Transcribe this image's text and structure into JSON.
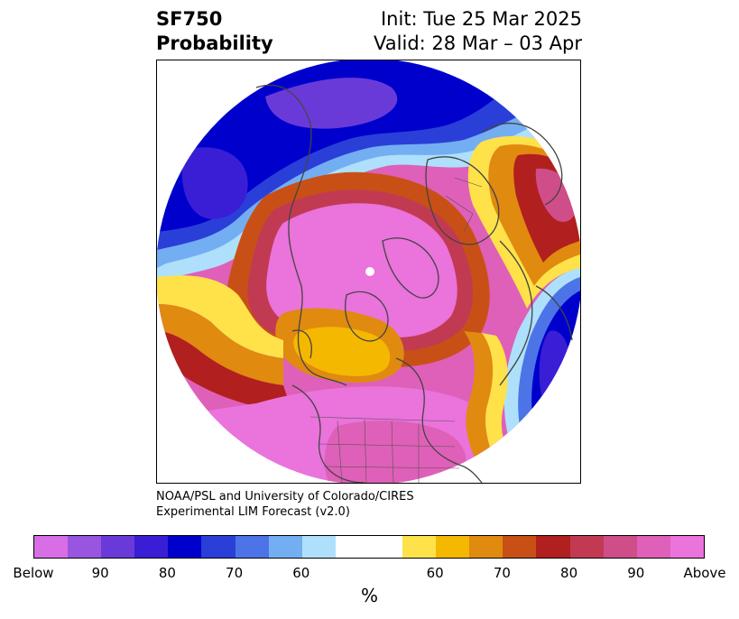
{
  "title": {
    "variable": "SF750",
    "product": "Probability",
    "init": "Init: Tue 25 Mar 2025",
    "valid": "Valid: 28 Mar – 03 Apr"
  },
  "credit": {
    "line1": "NOAA/PSL and University of Colorado/CIRES",
    "line2": "Experimental LIM Forecast (v2.0)"
  },
  "colorbar": {
    "colors": [
      "#d86ee6",
      "#9a55e0",
      "#6a3ad8",
      "#3a1ed6",
      "#0000cc",
      "#2a3fd8",
      "#4c74e6",
      "#74aef2",
      "#aee0fb",
      "#ffffff",
      "#ffffff",
      "#ffe24a",
      "#f5b800",
      "#e08a10",
      "#c85016",
      "#b21f1f",
      "#c23a52",
      "#cf4e8a",
      "#df60b8",
      "#ea73dc"
    ],
    "tick_labels": [
      "Below",
      "90",
      "80",
      "70",
      "60",
      "60",
      "70",
      "80",
      "90",
      "Above"
    ],
    "unit": "%"
  },
  "map": {
    "projection": "north-polar-stereographic",
    "pole_marker": "white-dot",
    "features": [
      "coastlines",
      "country-borders",
      "us-state-borders"
    ],
    "anomaly_regions": [
      {
        "region": "North Pacific / Aleutians",
        "category": "Below",
        "level": "90+"
      },
      {
        "region": "North Atlantic / Scandinavia",
        "category": "Below",
        "level": "90+"
      },
      {
        "region": "Arctic Ocean / Siberia",
        "category": "Above",
        "level": "90+"
      },
      {
        "region": "Contiguous United States",
        "category": "Above",
        "level": "90+"
      },
      {
        "region": "Eastern Canada / Greenland",
        "category": "Above",
        "level": "70"
      },
      {
        "region": "Western Europe",
        "category": "Above",
        "level": "70"
      }
    ]
  }
}
